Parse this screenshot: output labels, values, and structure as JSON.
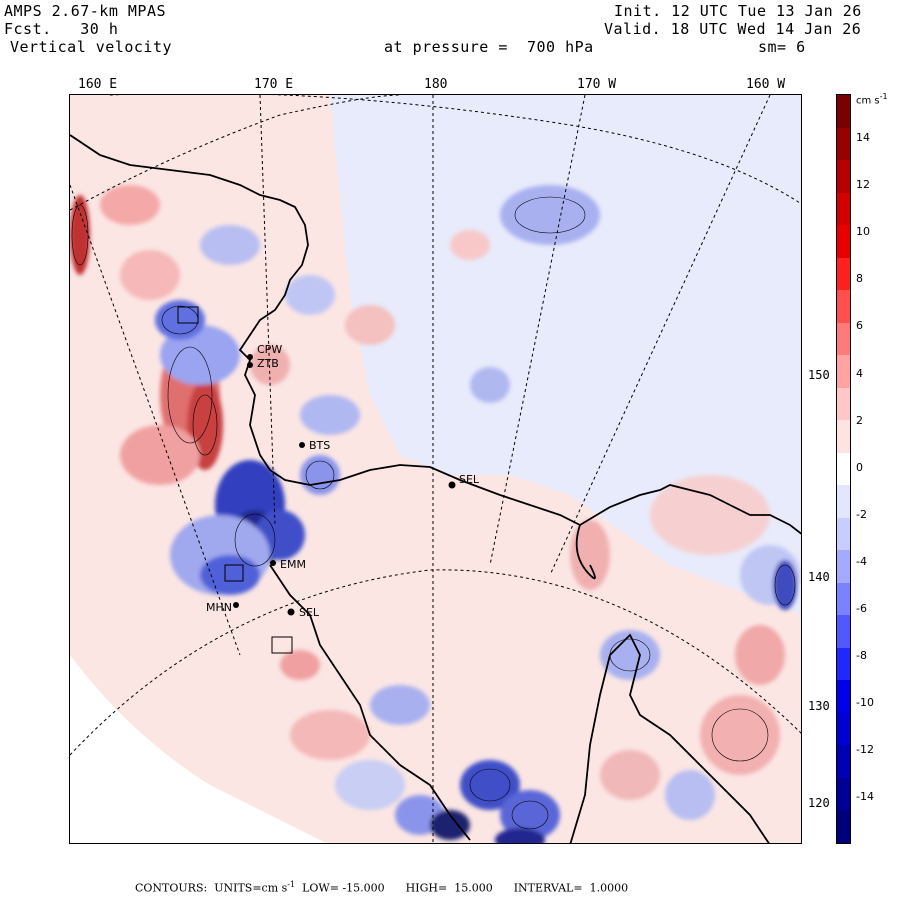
{
  "header": {
    "model": "AMPS 2.67-km MPAS",
    "fcst_label": "Fcst.",
    "fcst_value": "30 h",
    "field": "Vertical velocity",
    "init": "Init. 12 UTC Tue 13 Jan 26",
    "valid": "Valid. 18 UTC Wed 14 Jan 26",
    "level_prefix": "at pressure =",
    "level_value": "700 hPa",
    "smooth": "sm= 6"
  },
  "axes": {
    "longitudes": [
      "160 E",
      "170 E",
      "180",
      "170 W",
      "160 W"
    ],
    "latitudes": [
      "150 W",
      "140 W",
      "130 W",
      "120 W"
    ]
  },
  "colorbar": {
    "units": "cm s",
    "units_exp": "-1",
    "tick_labels": [
      "14",
      "12",
      "10",
      "8",
      "6",
      "4",
      "2",
      "0",
      "-2",
      "-4",
      "-6",
      "-8",
      "-10",
      "-12",
      "-14"
    ],
    "colors": [
      "#7a0000",
      "#960000",
      "#b40000",
      "#d20000",
      "#e80000",
      "#ff2020",
      "#ff5050",
      "#ff7a7a",
      "#ffa3a3",
      "#ffc8c8",
      "#ffe2e2",
      "#ffffff",
      "#e2e6ff",
      "#c8cdff",
      "#a3aaff",
      "#7a82ff",
      "#5058ff",
      "#2028ff",
      "#0000e8",
      "#0000d2",
      "#0000b4",
      "#000096",
      "#00007a"
    ]
  },
  "stations": [
    {
      "id": "CPW",
      "label": "CPW"
    },
    {
      "id": "ZTB",
      "label": "ZTB"
    },
    {
      "id": "BTS",
      "label": "BTS"
    },
    {
      "id": "SEL",
      "label": "SEL"
    },
    {
      "id": "EMM",
      "label": "EMM"
    },
    {
      "id": "MHN",
      "label": "MHN"
    },
    {
      "id": "SEL2",
      "label": "SEL"
    }
  ],
  "footer": {
    "contours_label": "CONTOURS:",
    "units_label": "UNITS=cm s",
    "units_exp": "-1",
    "low_label": "LOW=",
    "low_value": "-15.000",
    "high_label": "HIGH=",
    "high_value": "15.000",
    "interval_label": "INTERVAL=",
    "interval_value": "1.0000"
  }
}
